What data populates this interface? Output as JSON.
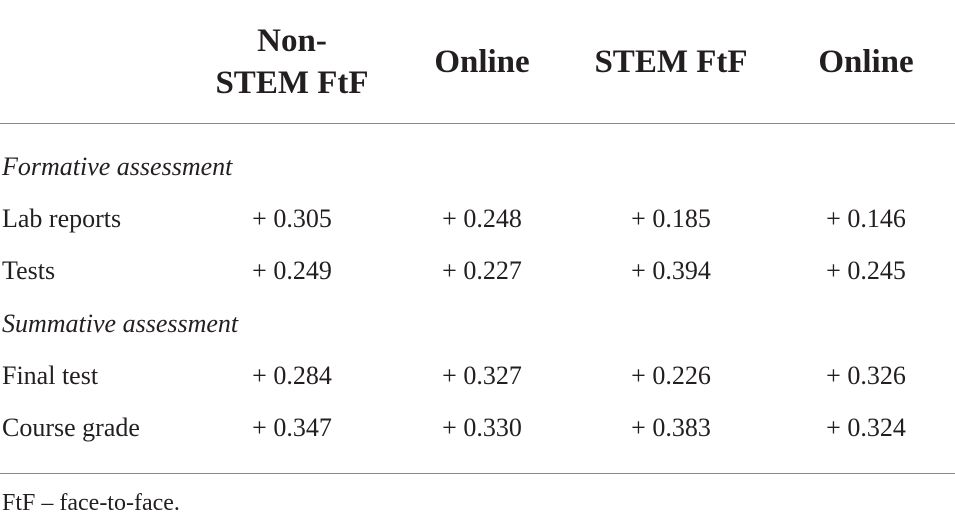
{
  "table": {
    "header": [
      "Non-STEM FtF",
      "Online",
      "STEM FtF",
      "Online"
    ],
    "sections": [
      {
        "title": "Formative assessment",
        "rows": [
          {
            "label": "Lab reports",
            "values": [
              "+ 0.305",
              "+ 0.248",
              "+ 0.185",
              "+ 0.146"
            ]
          },
          {
            "label": "Tests",
            "values": [
              "+ 0.249",
              "+ 0.227",
              "+ 0.394",
              "+ 0.245"
            ]
          }
        ]
      },
      {
        "title": "Summative assessment",
        "rows": [
          {
            "label": "Final test",
            "values": [
              "+ 0.284",
              "+ 0.327",
              "+ 0.226",
              "+ 0.326"
            ]
          },
          {
            "label": "Course grade",
            "values": [
              "+ 0.347",
              "+ 0.330",
              "+ 0.383",
              "+ 0.324"
            ]
          }
        ]
      }
    ]
  },
  "footnote": "FtF – face-to-face."
}
